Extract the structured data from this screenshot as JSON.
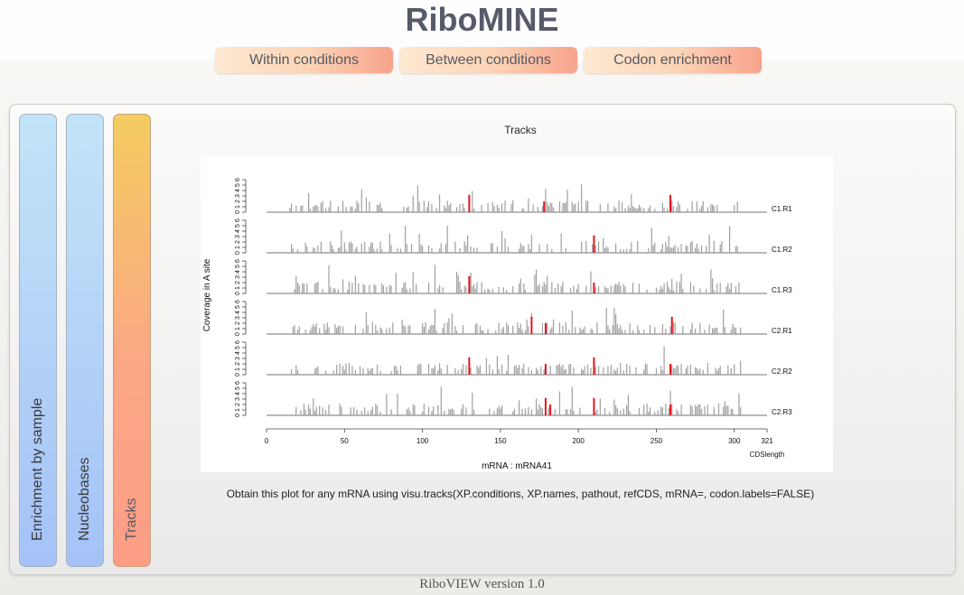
{
  "app": {
    "title": "RiboMINE",
    "footer": "RiboVIEW version 1.0"
  },
  "nav": {
    "items": [
      "Within conditions",
      "Between conditions",
      "Codon enrichment"
    ]
  },
  "sidebar": {
    "tabs": [
      "Enrichment by sample",
      "Nucleobases",
      "Tracks"
    ],
    "active": "Tracks"
  },
  "main": {
    "plot_title": "Tracks",
    "caption": "Obtain this plot for any mRNA using visu.tracks(XP.conditions, XP.names, pathout, refCDS, mRNA=, codon.labels=FALSE)"
  },
  "chart_data": {
    "type": "bar",
    "ylabel": "Coverage in A site",
    "xlabel": "mRNA : mRNA41",
    "xticks": [
      0,
      50,
      100,
      150,
      200,
      250,
      300
    ],
    "cds_length": 321,
    "cds_length_label": "CDSlength",
    "ylim": [
      0,
      6
    ],
    "yticks": [
      0,
      1,
      2,
      3,
      4,
      5,
      6
    ],
    "xlim": [
      0,
      321
    ],
    "colors": {
      "coverage": "#a0a0a0",
      "highlight": "#e8141e",
      "axis": "#444444"
    },
    "series": [
      {
        "name": "C1.R1",
        "highlights": [
          130,
          178,
          259
        ]
      },
      {
        "name": "C1.R2",
        "highlights": [
          210
        ]
      },
      {
        "name": "C1.R3",
        "highlights": [
          130,
          210
        ]
      },
      {
        "name": "C2.R1",
        "highlights": [
          170,
          179,
          260
        ]
      },
      {
        "name": "C2.R2",
        "highlights": [
          130,
          179,
          210,
          259
        ]
      },
      {
        "name": "C2.R3",
        "highlights": [
          179,
          182,
          210,
          259
        ]
      }
    ]
  }
}
